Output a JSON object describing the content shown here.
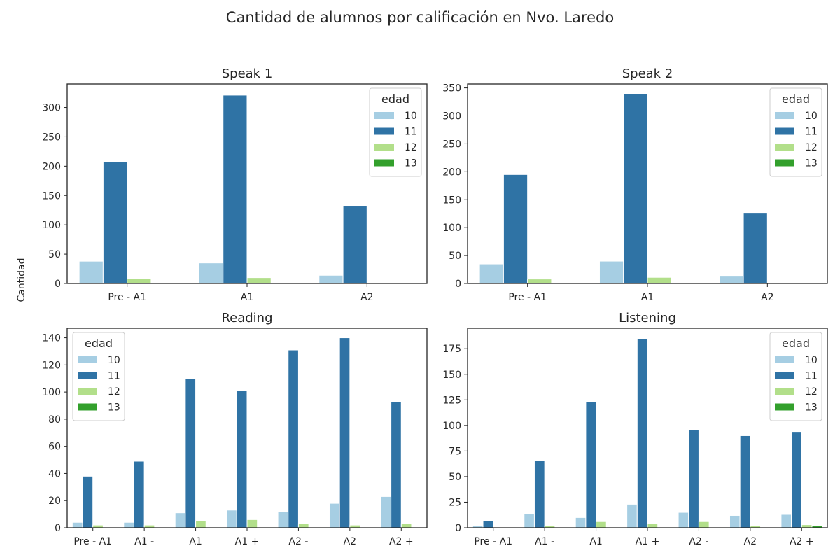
{
  "title": "Cantidad de alumnos por calificación en Nvo. Laredo",
  "ylabel": "Cantidad",
  "colors": {
    "10": "#a6cee3",
    "11": "#2f73a5",
    "12": "#b2df8a",
    "13": "#33a02c"
  },
  "chart_data": [
    {
      "type": "bar",
      "title": "Speak 1",
      "categories": [
        "Pre - A1",
        "A1",
        "A2"
      ],
      "ylim": [
        0,
        340
      ],
      "yticks": [
        0,
        50,
        100,
        150,
        200,
        250,
        300
      ],
      "legend": {
        "title": "edad",
        "position": "top-right"
      },
      "series": [
        {
          "name": "10",
          "values": [
            38,
            35,
            14
          ]
        },
        {
          "name": "11",
          "values": [
            208,
            321,
            133
          ]
        },
        {
          "name": "12",
          "values": [
            8,
            10,
            0
          ]
        },
        {
          "name": "13",
          "values": [
            0,
            0,
            0
          ]
        }
      ]
    },
    {
      "type": "bar",
      "title": "Speak 2",
      "categories": [
        "Pre - A1",
        "A1",
        "A2"
      ],
      "ylim": [
        0,
        357
      ],
      "yticks": [
        0,
        50,
        100,
        150,
        200,
        250,
        300,
        350
      ],
      "legend": {
        "title": "edad",
        "position": "top-right"
      },
      "series": [
        {
          "name": "10",
          "values": [
            35,
            40,
            13
          ]
        },
        {
          "name": "11",
          "values": [
            195,
            340,
            127
          ]
        },
        {
          "name": "12",
          "values": [
            8,
            11,
            0
          ]
        },
        {
          "name": "13",
          "values": [
            0,
            0,
            0
          ]
        }
      ]
    },
    {
      "type": "bar",
      "title": "Reading",
      "categories": [
        "Pre - A1",
        "A1 -",
        "A1",
        "A1 +",
        "A2 -",
        "A2",
        "A2 +"
      ],
      "ylim": [
        0,
        147
      ],
      "yticks": [
        0,
        20,
        40,
        60,
        80,
        100,
        120,
        140
      ],
      "legend": {
        "title": "edad",
        "position": "top-left"
      },
      "series": [
        {
          "name": "10",
          "values": [
            4,
            4,
            11,
            13,
            12,
            18,
            23
          ]
        },
        {
          "name": "11",
          "values": [
            38,
            49,
            110,
            101,
            131,
            140,
            93
          ]
        },
        {
          "name": "12",
          "values": [
            2,
            2,
            5,
            6,
            3,
            2,
            3
          ]
        },
        {
          "name": "13",
          "values": [
            0,
            0,
            0,
            0,
            0,
            0,
            0
          ]
        }
      ]
    },
    {
      "type": "bar",
      "title": "Listening",
      "categories": [
        "Pre - A1",
        "A1 -",
        "A1",
        "A1 +",
        "A2 -",
        "A2",
        "A2 +"
      ],
      "ylim": [
        0,
        195
      ],
      "yticks": [
        0,
        25,
        50,
        75,
        100,
        125,
        150,
        175
      ],
      "legend": {
        "title": "edad",
        "position": "top-right"
      },
      "series": [
        {
          "name": "10",
          "values": [
            2,
            14,
            10,
            23,
            15,
            12,
            13
          ]
        },
        {
          "name": "11",
          "values": [
            7,
            66,
            123,
            185,
            96,
            90,
            94
          ]
        },
        {
          "name": "12",
          "values": [
            0,
            2,
            6,
            4,
            6,
            2,
            3
          ]
        },
        {
          "name": "13",
          "values": [
            0,
            0,
            0,
            0,
            0,
            0,
            2
          ]
        }
      ]
    }
  ]
}
